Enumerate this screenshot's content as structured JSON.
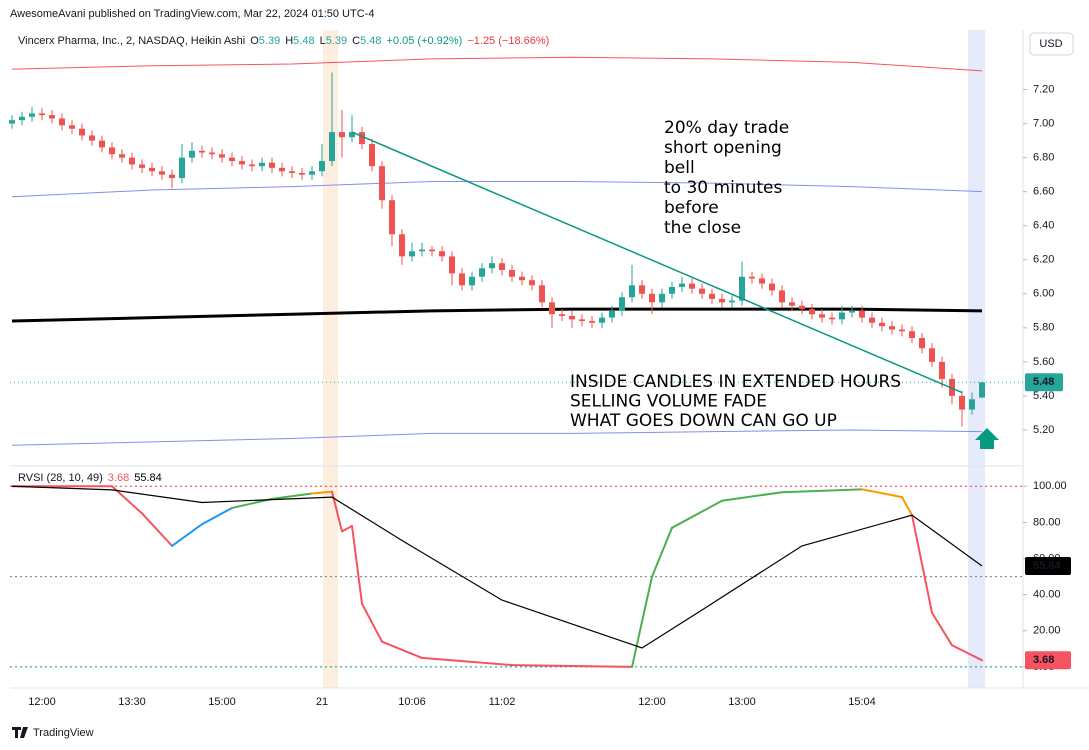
{
  "header": "AwesomeAvani published on TradingView.com, Mar 22, 2024 01:50 UTC-4",
  "currency": "USD",
  "footer": "TradingView",
  "chart_data": [
    {
      "type": "candlestick",
      "symbol": "Vincerx Pharma, Inc., 2, NASDAQ, Heikin Ashi",
      "ohlc_keys": [
        "O",
        "H",
        "L",
        "C"
      ],
      "changes": [
        {
          "text": "+0.05 (+0.92%)",
          "color": "#089981"
        },
        {
          "text": "−1.25 (−18.66%)",
          "color": "#f23645"
        }
      ],
      "up_color": "#26a69a",
      "down_color": "#ef5350",
      "categories": [
        null,
        null,
        null,
        "12:00",
        null,
        null,
        null,
        null,
        null,
        null,
        null,
        null,
        "13:30",
        null,
        null,
        null,
        null,
        null,
        null,
        null,
        null,
        "15:00",
        null,
        null,
        null,
        null,
        null,
        null,
        null,
        null,
        null,
        "21",
        null,
        null,
        null,
        null,
        null,
        null,
        null,
        null,
        "10:06",
        null,
        null,
        null,
        null,
        null,
        null,
        null,
        null,
        "11:02",
        null,
        null,
        null,
        null,
        null,
        null,
        null,
        null,
        null,
        null,
        null,
        null,
        null,
        null,
        "12:00",
        null,
        null,
        null,
        null,
        null,
        null,
        null,
        null,
        "13:00",
        null,
        null,
        null,
        null,
        null,
        null,
        null,
        null,
        null,
        null,
        null,
        "15:04",
        null,
        null,
        null,
        null,
        null,
        null,
        null,
        null,
        null,
        null,
        null,
        null
      ],
      "open": [
        7.0,
        7.02,
        7.04,
        7.06,
        7.05,
        7.03,
        6.99,
        6.97,
        6.93,
        6.9,
        6.86,
        6.82,
        6.8,
        6.76,
        6.74,
        6.72,
        6.7,
        6.68,
        6.8,
        6.84,
        6.83,
        6.82,
        6.8,
        6.78,
        6.76,
        6.75,
        6.77,
        6.74,
        6.72,
        6.71,
        6.7,
        6.72,
        6.78,
        6.95,
        6.92,
        6.95,
        6.88,
        6.75,
        6.55,
        6.35,
        6.22,
        6.25,
        6.26,
        6.25,
        6.22,
        6.12,
        6.05,
        6.1,
        6.15,
        6.18,
        6.14,
        6.1,
        6.08,
        6.05,
        5.95,
        5.88,
        5.87,
        5.85,
        5.84,
        5.83,
        5.86,
        5.9,
        5.98,
        6.05,
        6.0,
        5.95,
        6.0,
        6.04,
        6.06,
        6.03,
        6.0,
        5.97,
        5.95,
        5.96,
        6.1,
        6.09,
        6.06,
        6.02,
        5.95,
        5.93,
        5.91,
        5.88,
        5.86,
        5.85,
        5.89,
        5.9,
        5.86,
        5.83,
        5.81,
        5.79,
        5.78,
        5.74,
        5.68,
        5.6,
        5.5,
        5.4,
        5.32,
        5.39
      ],
      "high": [
        7.05,
        7.07,
        7.1,
        7.09,
        7.08,
        7.06,
        7.02,
        7.0,
        6.96,
        6.93,
        6.89,
        6.85,
        6.83,
        6.79,
        6.77,
        6.75,
        6.73,
        6.88,
        6.89,
        6.87,
        6.86,
        6.85,
        6.83,
        6.81,
        6.79,
        6.8,
        6.8,
        6.77,
        6.75,
        6.74,
        6.75,
        6.88,
        7.3,
        7.08,
        7.05,
        6.98,
        6.91,
        6.78,
        6.58,
        6.38,
        6.3,
        6.3,
        6.28,
        6.28,
        6.25,
        6.15,
        6.13,
        6.18,
        6.22,
        6.21,
        6.17,
        6.13,
        6.11,
        6.08,
        5.98,
        5.91,
        5.9,
        5.88,
        5.87,
        5.89,
        5.93,
        6.01,
        6.17,
        6.08,
        6.03,
        6.03,
        6.07,
        6.1,
        6.09,
        6.06,
        6.03,
        6.0,
        5.99,
        6.19,
        6.13,
        6.12,
        6.09,
        6.05,
        5.98,
        5.96,
        5.94,
        5.91,
        5.89,
        5.93,
        5.93,
        5.93,
        5.89,
        5.86,
        5.84,
        5.82,
        5.81,
        5.77,
        5.71,
        5.63,
        5.53,
        5.43,
        5.42,
        5.48
      ],
      "low": [
        6.97,
        6.99,
        7.01,
        7.02,
        7.0,
        6.96,
        6.94,
        6.9,
        6.87,
        6.83,
        6.79,
        6.77,
        6.73,
        6.71,
        6.69,
        6.67,
        6.62,
        6.65,
        6.77,
        6.8,
        6.79,
        6.77,
        6.75,
        6.73,
        6.72,
        6.72,
        6.71,
        6.69,
        6.68,
        6.67,
        6.67,
        6.69,
        6.75,
        6.8,
        6.89,
        6.85,
        6.72,
        6.5,
        6.28,
        6.17,
        6.19,
        6.22,
        6.22,
        6.19,
        6.05,
        6.02,
        6.02,
        6.07,
        6.12,
        6.11,
        6.07,
        6.05,
        6.02,
        5.92,
        5.8,
        5.84,
        5.8,
        5.81,
        5.8,
        5.8,
        5.83,
        5.87,
        5.95,
        5.97,
        5.88,
        5.92,
        5.97,
        6.01,
        6.0,
        5.97,
        5.94,
        5.92,
        5.92,
        5.93,
        6.06,
        6.03,
        5.99,
        5.92,
        5.9,
        5.88,
        5.85,
        5.83,
        5.82,
        5.82,
        5.86,
        5.83,
        5.8,
        5.78,
        5.76,
        5.75,
        5.71,
        5.65,
        5.57,
        5.45,
        5.35,
        5.22,
        5.29,
        5.39
      ],
      "close": [
        7.02,
        7.04,
        7.06,
        7.05,
        7.03,
        6.99,
        6.97,
        6.93,
        6.9,
        6.86,
        6.82,
        6.8,
        6.76,
        6.74,
        6.72,
        6.7,
        6.68,
        6.8,
        6.84,
        6.83,
        6.82,
        6.8,
        6.78,
        6.76,
        6.75,
        6.77,
        6.74,
        6.72,
        6.71,
        6.7,
        6.72,
        6.78,
        6.95,
        6.92,
        6.95,
        6.88,
        6.75,
        6.55,
        6.35,
        6.22,
        6.25,
        6.26,
        6.25,
        6.22,
        6.12,
        6.05,
        6.1,
        6.15,
        6.18,
        6.14,
        6.1,
        6.08,
        6.05,
        5.95,
        5.88,
        5.87,
        5.85,
        5.84,
        5.83,
        5.86,
        5.9,
        5.98,
        6.05,
        6.0,
        5.95,
        6.0,
        6.04,
        6.06,
        6.03,
        6.0,
        5.97,
        5.95,
        5.96,
        6.1,
        6.09,
        6.06,
        6.02,
        5.95,
        5.93,
        5.91,
        5.88,
        5.86,
        5.85,
        5.89,
        5.9,
        5.86,
        5.83,
        5.81,
        5.79,
        5.78,
        5.74,
        5.68,
        5.6,
        5.5,
        5.4,
        5.32,
        5.38,
        5.48
      ],
      "series": [
        {
          "x": [
            0,
            14,
            28,
            42,
            56,
            70,
            84,
            97
          ],
          "values": [
            7.32,
            7.34,
            7.35,
            7.38,
            7.39,
            7.38,
            7.36,
            7.31
          ],
          "color": "#f7525f",
          "line_width": 1
        },
        {
          "x": [
            0,
            14,
            28,
            42,
            56,
            70,
            84,
            97
          ],
          "values": [
            6.57,
            6.61,
            6.63,
            6.66,
            6.66,
            6.65,
            6.63,
            6.6
          ],
          "color": "#7e8ff0",
          "line_width": 1
        },
        {
          "x": [
            0,
            14,
            28,
            42,
            56,
            70,
            84,
            97
          ],
          "values": [
            5.84,
            5.86,
            5.88,
            5.9,
            5.91,
            5.91,
            5.91,
            5.9
          ],
          "color": "#000000",
          "line_width": 3
        },
        {
          "x": [
            0,
            14,
            28,
            42,
            56,
            70,
            84,
            97
          ],
          "values": [
            5.11,
            5.13,
            5.15,
            5.18,
            5.18,
            5.19,
            5.2,
            5.19
          ],
          "color": "#7e8ff0",
          "line_width": 1
        }
      ],
      "trendline": {
        "x": [
          34,
          95
        ],
        "values": [
          6.95,
          5.42
        ],
        "color": "#089981"
      },
      "annotations": [
        {
          "lines": [
            "20% day trade",
            "short  opening",
            "bell",
            "to 30 minutes",
            "before",
            "the close"
          ]
        },
        {
          "lines": [
            "INSIDE CANDLES IN EXTENDED HOURS",
            "SELLING VOLUME FADE",
            "WHAT GOES DOWN CAN GO  UP"
          ]
        }
      ],
      "ylim": [
        5.0,
        7.55
      ],
      "yticks": [
        {
          "value": 5.2,
          "label": "5.20"
        },
        {
          "value": 5.4,
          "label": "5.40"
        },
        {
          "value": 5.6,
          "label": "5.60"
        },
        {
          "value": 5.8,
          "label": "5.80"
        },
        {
          "value": 6.0,
          "label": "6.00"
        },
        {
          "value": 6.2,
          "label": "6.20"
        },
        {
          "value": 6.4,
          "label": "6.40"
        },
        {
          "value": 6.6,
          "label": "6.60"
        },
        {
          "value": 6.8,
          "label": "6.80"
        },
        {
          "value": 7.0,
          "label": "7.00"
        },
        {
          "value": 7.2,
          "label": "7.20"
        }
      ],
      "grid": false
    },
    {
      "type": "line",
      "title": "RVSI (28, 10, 49)",
      "series": [
        {
          "x": [
            0,
            10,
            13,
            16,
            19,
            22,
            26,
            30,
            32,
            33,
            34,
            35,
            37,
            41,
            50,
            62,
            64,
            66,
            71,
            77,
            85,
            89,
            90,
            92,
            94,
            97
          ],
          "values": [
            100,
            100,
            85,
            67,
            79,
            88,
            93,
            96,
            97,
            75,
            78,
            35,
            14,
            5,
            1,
            0,
            50,
            77,
            92,
            96.7,
            98.3,
            94,
            84,
            30,
            12,
            3.68
          ],
          "colors": [
            "#f7525f",
            "#f7525f",
            "#f7525f",
            "#2196f3",
            "#2196f3",
            "#4caf50",
            "#4caf50",
            "#ff9800",
            "#f7525f",
            "#f7525f",
            "#f7525f",
            "#f7525f",
            "#f7525f",
            "#f7525f",
            "#f7525f",
            "#4caf50",
            "#4caf50",
            "#4caf50",
            "#4caf50",
            "#4caf50",
            "#ff9800",
            "#ff9800",
            "#f7525f",
            "#f7525f",
            "#f7525f",
            "#f7525f"
          ]
        },
        {
          "x": [
            0,
            10,
            19,
            32,
            39,
            49,
            63,
            69,
            79,
            90,
            97
          ],
          "values": [
            100,
            98,
            91,
            94,
            70,
            37,
            10.5,
            31.5,
            67,
            84,
            55.84
          ],
          "color": "#000000"
        }
      ],
      "levels": [
        {
          "value": 100,
          "color": "#f23645"
        },
        {
          "value": 50,
          "color": "#787b86"
        },
        {
          "value": 0,
          "color": "#089981"
        }
      ],
      "ylim": [
        -10,
        109
      ],
      "yticks": [
        {
          "value": 0,
          "label": "0.00"
        },
        {
          "value": 20,
          "label": "20.00"
        },
        {
          "value": 40,
          "label": "40.00"
        },
        {
          "value": 60,
          "label": "60.00"
        },
        {
          "value": 80,
          "label": "80.00"
        },
        {
          "value": 100,
          "label": "100.00"
        }
      ],
      "grid": false
    }
  ]
}
